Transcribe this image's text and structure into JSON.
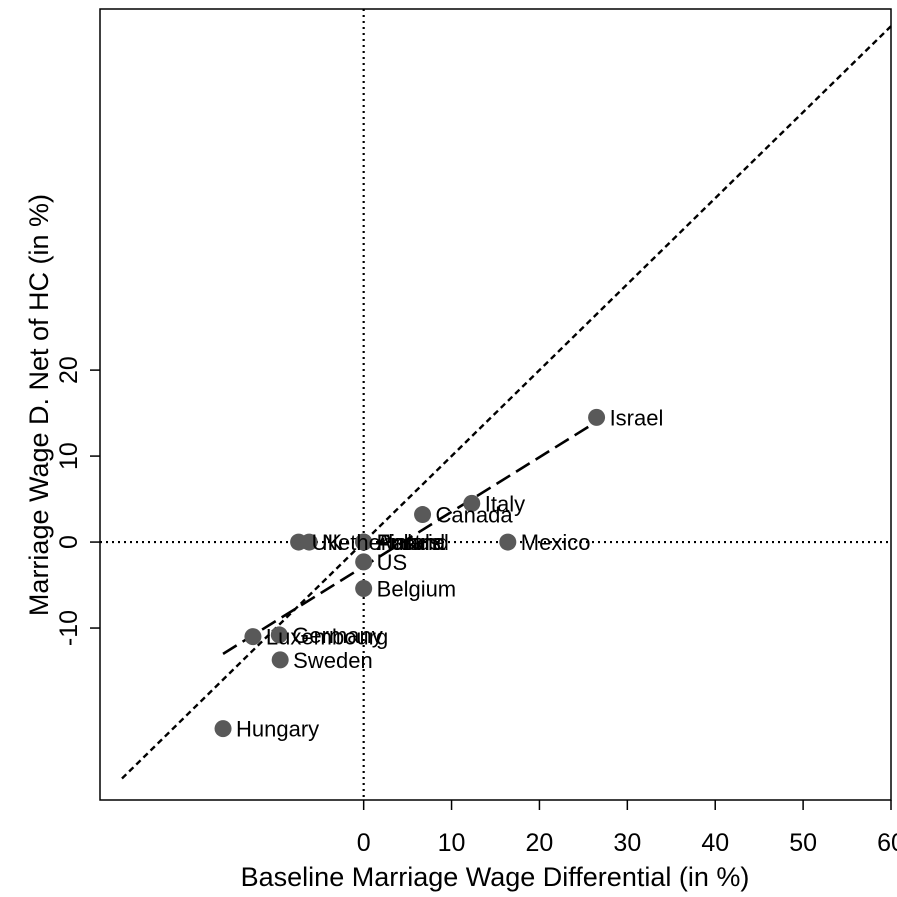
{
  "chart_data": {
    "type": "scatter",
    "title": "",
    "xlabel": "Baseline Marriage Wage Differential (in %)",
    "ylabel": "Marriage Wage D. Net of HC (in %)",
    "xlim": [
      -30,
      60
    ],
    "ylim": [
      -30,
      62
    ],
    "x_ticks": [
      0,
      10,
      20,
      30,
      40,
      50,
      60
    ],
    "y_ticks": [
      -10,
      0,
      10,
      20
    ],
    "x_tick_labels": [
      "0",
      "10",
      "20",
      "30",
      "40",
      "50",
      "60"
    ],
    "y_tick_labels": [
      "-10",
      "0",
      "10",
      "20"
    ],
    "grid": false,
    "reference_lines": {
      "x_zero": true,
      "y_zero": true,
      "identity_45_degree": true
    },
    "fit_line": {
      "x": [
        -16,
        26.5
      ],
      "y": [
        -13,
        14
      ]
    },
    "points": [
      {
        "label": "Israel",
        "x": 26.5,
        "y": 14.5
      },
      {
        "label": "Italy",
        "x": 12.3,
        "y": 4.5
      },
      {
        "label": "Canada",
        "x": 6.7,
        "y": 3.2
      },
      {
        "label": "Mexico",
        "x": 16.4,
        "y": 0
      },
      {
        "label": "UK",
        "x": -7.4,
        "y": 0
      },
      {
        "label": "Netherlands",
        "x": -6.2,
        "y": 0
      },
      {
        "label": "Poland",
        "x": 0,
        "y": 0
      },
      {
        "label": "Finland",
        "x": 0,
        "y": 0
      },
      {
        "label": "Austria",
        "x": 0,
        "y": 0
      },
      {
        "label": "US",
        "x": 0,
        "y": -2.3
      },
      {
        "label": "Belgium",
        "x": 0,
        "y": -5.4
      },
      {
        "label": "Germany",
        "x": -9.6,
        "y": -10.8
      },
      {
        "label": "Luxembourg",
        "x": -12.6,
        "y": -11
      },
      {
        "label": "Sweden",
        "x": -9.5,
        "y": -13.7
      },
      {
        "label": "Hungary",
        "x": -16,
        "y": -21.7
      }
    ],
    "colors": {
      "point": "#595959",
      "line": "#000000"
    }
  }
}
